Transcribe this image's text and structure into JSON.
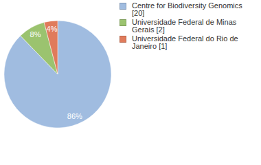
{
  "chart_data": {
    "type": "pie",
    "categories": [
      "Centre for Biodiversity Genomics [20]",
      "Universidade Federal de Minas Gerais [2]",
      "Universidade Federal do Rio de Janeiro [1]"
    ],
    "values": [
      86,
      8,
      4
    ],
    "value_labels": [
      "86%",
      "8%",
      "4%"
    ],
    "colors": [
      "#a0bce0",
      "#9bc36f",
      "#e07b5b"
    ],
    "data_labels": true,
    "legend": "top-right"
  }
}
